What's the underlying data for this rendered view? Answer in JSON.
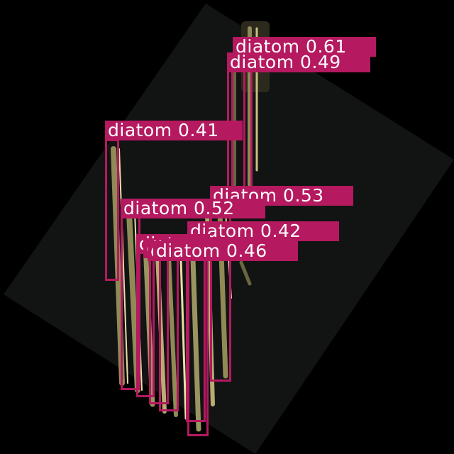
{
  "image": {
    "description_colors": {
      "background": "#000000",
      "slide_panel": "#121413",
      "diatom_body": "#8f8a56",
      "diatom_highlight": "#e8e0a6",
      "box_color": "#b5195f",
      "label_text": "#ffffff"
    }
  },
  "detections": [
    {
      "class": "diatom",
      "score": "0.61",
      "label": "diatom 0.61"
    },
    {
      "class": "diatom",
      "score": "0.49",
      "label": "diatom 0.49"
    },
    {
      "class": "diatom",
      "score": "0.41",
      "label": "diatom 0.41"
    },
    {
      "class": "diatom",
      "score": "0.53",
      "label": "diatom 0.53"
    },
    {
      "class": "diatom",
      "score": "0.52",
      "label": "diatom 0.52"
    },
    {
      "class": "diatom",
      "score": "0.42",
      "label": "diatom 0.42"
    },
    {
      "class": "diatom",
      "score": "0.46",
      "label": "diatom 0.46"
    },
    {
      "class": "diatom",
      "score": "",
      "label": "diatom"
    },
    {
      "class": "diatom",
      "score": "",
      "label": "diatom"
    },
    {
      "class": "diatom",
      "score": "",
      "label": "diatom"
    }
  ]
}
